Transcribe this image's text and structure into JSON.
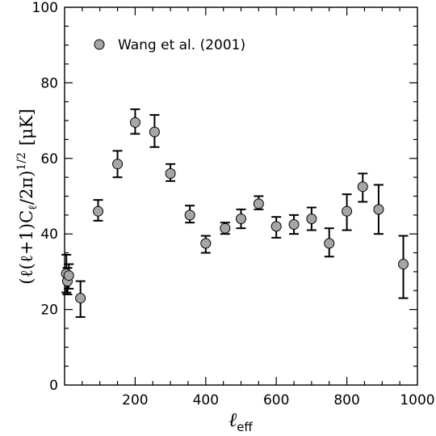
{
  "chart_data": {
    "type": "scatter",
    "xlim": [
      0,
      1000
    ],
    "ylim": [
      0,
      100
    ],
    "x_ticks": [
      200,
      400,
      600,
      800,
      1000
    ],
    "y_ticks": [
      0,
      20,
      40,
      60,
      80,
      100
    ],
    "xlabel": "ℓeff",
    "xlabel_main": "ℓ",
    "xlabel_sub": "eff",
    "ylabel": "(ℓ(ℓ+1)Cℓ/2π)^1/2 [μK]",
    "ylabel_main": "(ℓ(ℓ+1)C",
    "ylabel_sub": "ℓ",
    "ylabel_rest": "/2π)",
    "ylabel_sup": "1/2",
    "ylabel_unit": "[μK]",
    "legend_position": "top-left",
    "series": [
      {
        "name": "Wang et al. (2001)",
        "marker_color": "#a6a6a6",
        "points": [
          {
            "x": 5,
            "y": 29.5,
            "lo": 24.5,
            "hi": 34.5
          },
          {
            "x": 8,
            "y": 27.5,
            "lo": 24.0,
            "hi": 31.0
          },
          {
            "x": 12,
            "y": 29.0,
            "lo": 25.5,
            "hi": 32.0
          },
          {
            "x": 45,
            "y": 23.0,
            "lo": 18.0,
            "hi": 27.5
          },
          {
            "x": 95,
            "y": 46.0,
            "lo": 43.5,
            "hi": 49.0
          },
          {
            "x": 150,
            "y": 58.5,
            "lo": 55.0,
            "hi": 62.0
          },
          {
            "x": 200,
            "y": 69.5,
            "lo": 66.5,
            "hi": 73.0
          },
          {
            "x": 255,
            "y": 67.0,
            "lo": 63.0,
            "hi": 71.5
          },
          {
            "x": 300,
            "y": 56.0,
            "lo": 54.0,
            "hi": 58.5
          },
          {
            "x": 355,
            "y": 45.0,
            "lo": 43.0,
            "hi": 47.5
          },
          {
            "x": 400,
            "y": 37.5,
            "lo": 35.0,
            "hi": 39.5
          },
          {
            "x": 455,
            "y": 41.5,
            "lo": 40.0,
            "hi": 43.0
          },
          {
            "x": 500,
            "y": 44.0,
            "lo": 41.5,
            "hi": 46.5
          },
          {
            "x": 550,
            "y": 48.0,
            "lo": 46.5,
            "hi": 50.0
          },
          {
            "x": 600,
            "y": 42.0,
            "lo": 39.0,
            "hi": 44.5
          },
          {
            "x": 650,
            "y": 42.5,
            "lo": 40.0,
            "hi": 45.0
          },
          {
            "x": 700,
            "y": 44.0,
            "lo": 41.0,
            "hi": 47.0
          },
          {
            "x": 750,
            "y": 37.5,
            "lo": 34.0,
            "hi": 41.5
          },
          {
            "x": 800,
            "y": 46.0,
            "lo": 41.0,
            "hi": 50.5
          },
          {
            "x": 845,
            "y": 52.5,
            "lo": 48.5,
            "hi": 56.0
          },
          {
            "x": 890,
            "y": 46.5,
            "lo": 40.0,
            "hi": 53.0
          },
          {
            "x": 960,
            "y": 32.0,
            "lo": 23.0,
            "hi": 39.5
          }
        ]
      }
    ]
  }
}
